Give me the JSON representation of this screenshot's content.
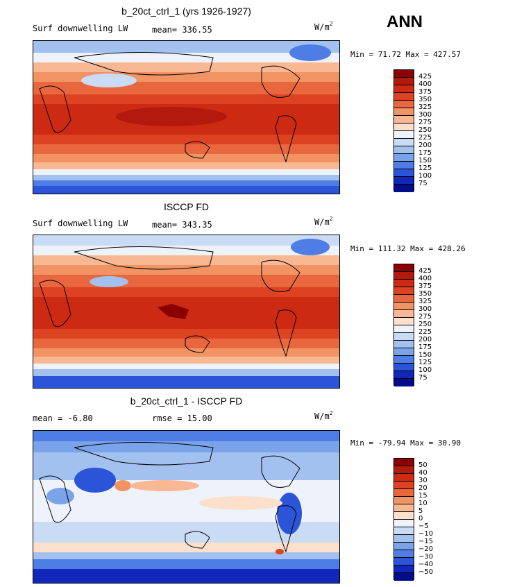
{
  "season": "ANN",
  "panels": [
    {
      "title": "b_20ct_ctrl_1 (yrs 1926-1927)",
      "left_text": "Surf downwelling LW",
      "mid_text": "mean= 336.55",
      "units": "W/m",
      "units_sup": "2",
      "minmax": "Min =  71.72 Max = 427.57",
      "levels": [
        "425",
        "400",
        "375",
        "350",
        "325",
        "300",
        "275",
        "250",
        "225",
        "200",
        "175",
        "150",
        "125",
        "100",
        "75"
      ],
      "colors": [
        "#8b0000",
        "#b31a0d",
        "#cc2a13",
        "#dd4322",
        "#e9673e",
        "#f29364",
        "#f8b894",
        "#fce0cc",
        "#eef3fb",
        "#c9dbf5",
        "#a2c1ef",
        "#7aa3ea",
        "#4e7de6",
        "#2b54d9",
        "#1027b9",
        "#000c8a"
      ]
    },
    {
      "title": "ISCCP FD",
      "left_text": "Surf downwelling LW",
      "mid_text": "mean= 343.35",
      "units": "W/m",
      "units_sup": "2",
      "minmax": "Min = 111.32 Max = 428.26",
      "levels": [
        "425",
        "400",
        "375",
        "350",
        "325",
        "300",
        "275",
        "250",
        "225",
        "200",
        "175",
        "150",
        "125",
        "100",
        "75"
      ],
      "colors": [
        "#8b0000",
        "#b31a0d",
        "#cc2a13",
        "#dd4322",
        "#e9673e",
        "#f29364",
        "#f8b894",
        "#fce0cc",
        "#eef3fb",
        "#c9dbf5",
        "#a2c1ef",
        "#7aa3ea",
        "#4e7de6",
        "#2b54d9",
        "#1027b9",
        "#000c8a"
      ]
    },
    {
      "title": "b_20ct_ctrl_1 - ISCCP FD",
      "left_text": "mean =   -6.80",
      "mid_text": "rmse =   15.00",
      "units": "W/m",
      "units_sup": "2",
      "minmax": "Min = -79.94 Max =  30.90",
      "levels": [
        "50",
        "40",
        "30",
        "20",
        "15",
        "10",
        "5",
        "0",
        "−5",
        "−10",
        "−15",
        "−20",
        "−30",
        "−40",
        "−50"
      ],
      "colors": [
        "#8b0000",
        "#b31a0d",
        "#cc2a13",
        "#dd4322",
        "#e9673e",
        "#f29364",
        "#f8b894",
        "#fce0cc",
        "#eef3fb",
        "#c9dbf5",
        "#a2c1ef",
        "#7aa3ea",
        "#4e7de6",
        "#2b54d9",
        "#1027b9",
        "#000c8a"
      ]
    }
  ]
}
